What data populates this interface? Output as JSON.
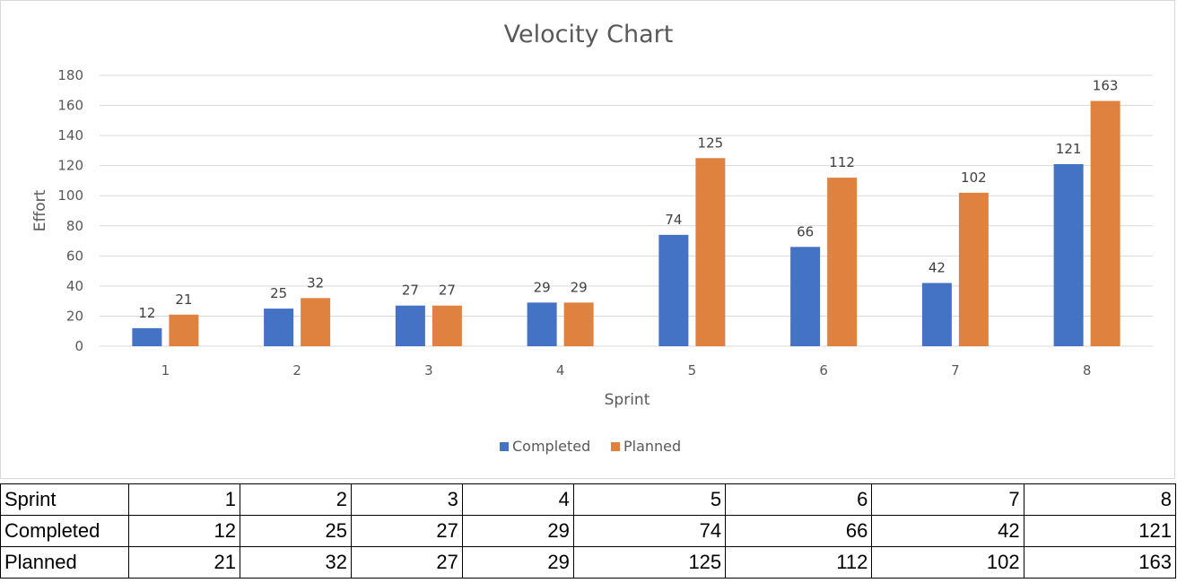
{
  "chart_data": {
    "type": "bar",
    "title": "Velocity Chart",
    "xlabel": "Sprint",
    "ylabel": "Effort",
    "categories": [
      "1",
      "2",
      "3",
      "4",
      "5",
      "6",
      "7",
      "8"
    ],
    "series": [
      {
        "name": "Completed",
        "color": "#4472c4",
        "values": [
          12,
          25,
          27,
          29,
          74,
          66,
          42,
          121
        ]
      },
      {
        "name": "Planned",
        "color": "#e0823f",
        "values": [
          21,
          32,
          27,
          29,
          125,
          112,
          102,
          163
        ]
      }
    ],
    "ylim": [
      0,
      180
    ],
    "yticks": [
      "0",
      "20",
      "40",
      "60",
      "80",
      "100",
      "120",
      "140",
      "160",
      "180"
    ],
    "grid": true,
    "legend": "bottom",
    "data_labels": true
  },
  "table": {
    "rows": [
      {
        "label": "Sprint",
        "cells": [
          "1",
          "2",
          "3",
          "4",
          "5",
          "6",
          "7",
          "8"
        ]
      },
      {
        "label": "Completed",
        "cells": [
          "12",
          "25",
          "27",
          "29",
          "74",
          "66",
          "42",
          "121"
        ]
      },
      {
        "label": "Planned",
        "cells": [
          "21",
          "32",
          "27",
          "29",
          "125",
          "112",
          "102",
          "163"
        ]
      }
    ]
  }
}
